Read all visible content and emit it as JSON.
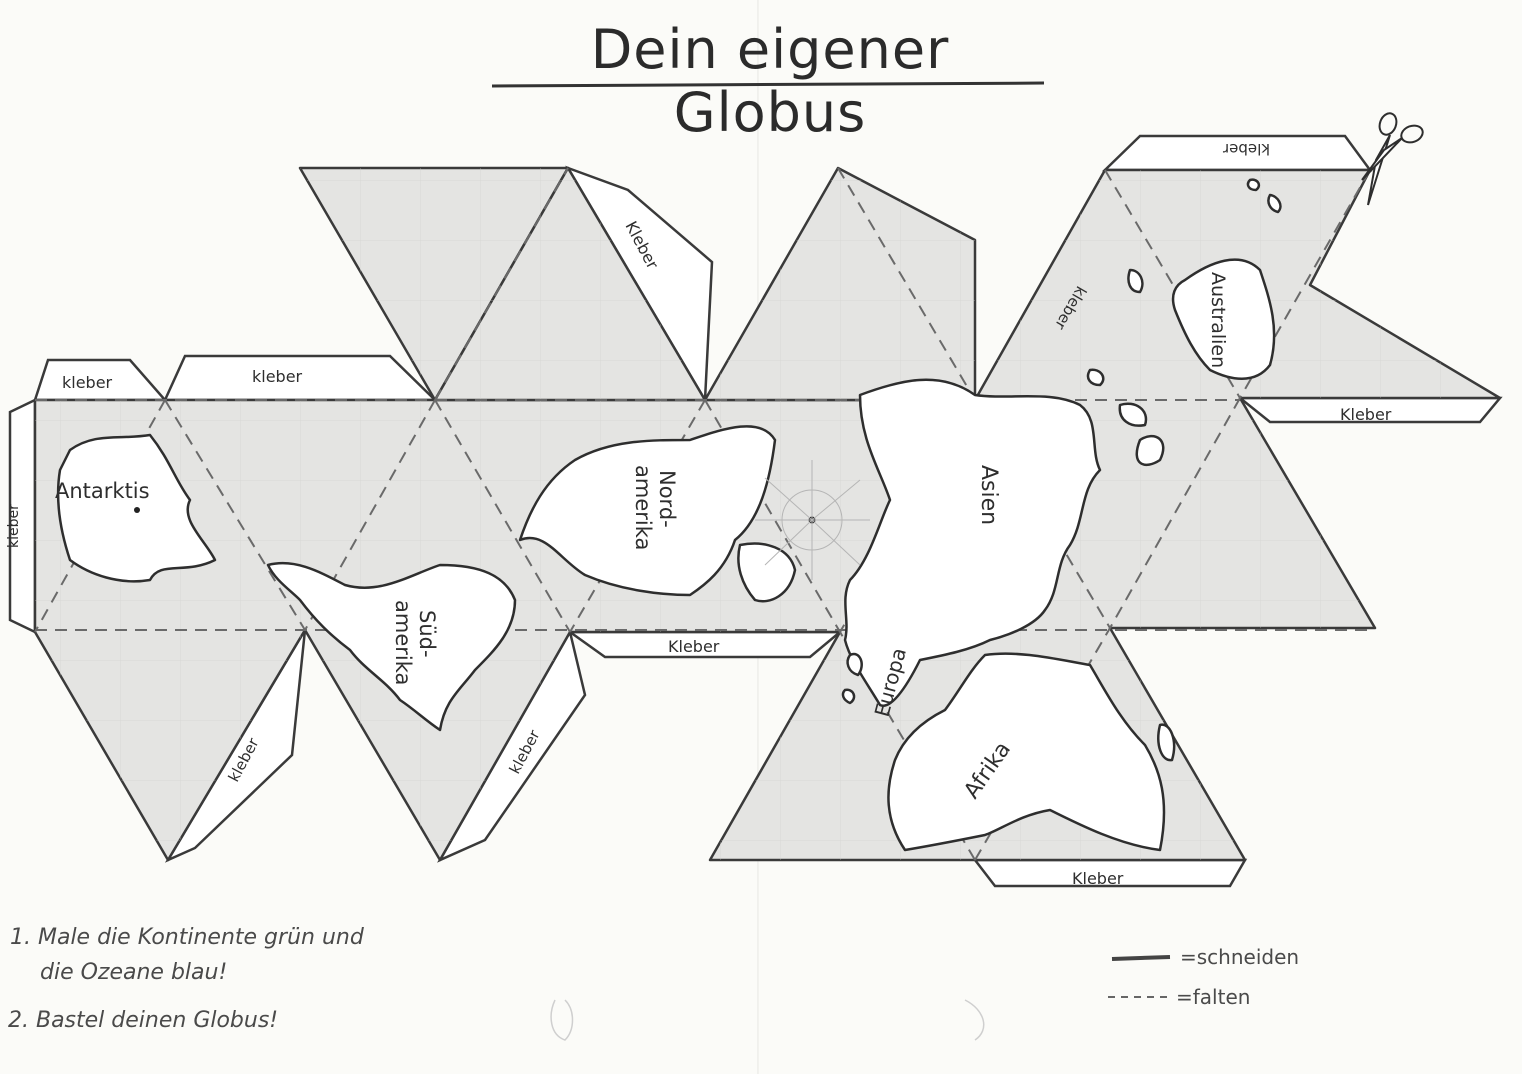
{
  "title": "Dein eigener Globus",
  "glue_label": "Kleber",
  "glue_label_lower": "kleber",
  "continents": {
    "antarctica": "Antarktis",
    "south_america_1": "Süd-",
    "south_america_2": "amerika",
    "north_america_1": "Nord-",
    "north_america_2": "amerika",
    "asia": "Asien",
    "europe": "Europa",
    "africa": "Afrika",
    "australia": "Australien"
  },
  "instructions": {
    "step1_line1": "1. Male die Kontinente grün und",
    "step1_line2": "die Ozeane blau!",
    "step2": "2. Bastel deinen Globus!"
  },
  "legend": {
    "cut": "=schneiden",
    "fold": "=falten"
  },
  "icons": {
    "scissors": "scissors-icon"
  },
  "colors": {
    "ink": "#3a3a3a",
    "panel": "#e4e4e2",
    "land": "#ffffff",
    "paper": "#fbfbf8"
  }
}
